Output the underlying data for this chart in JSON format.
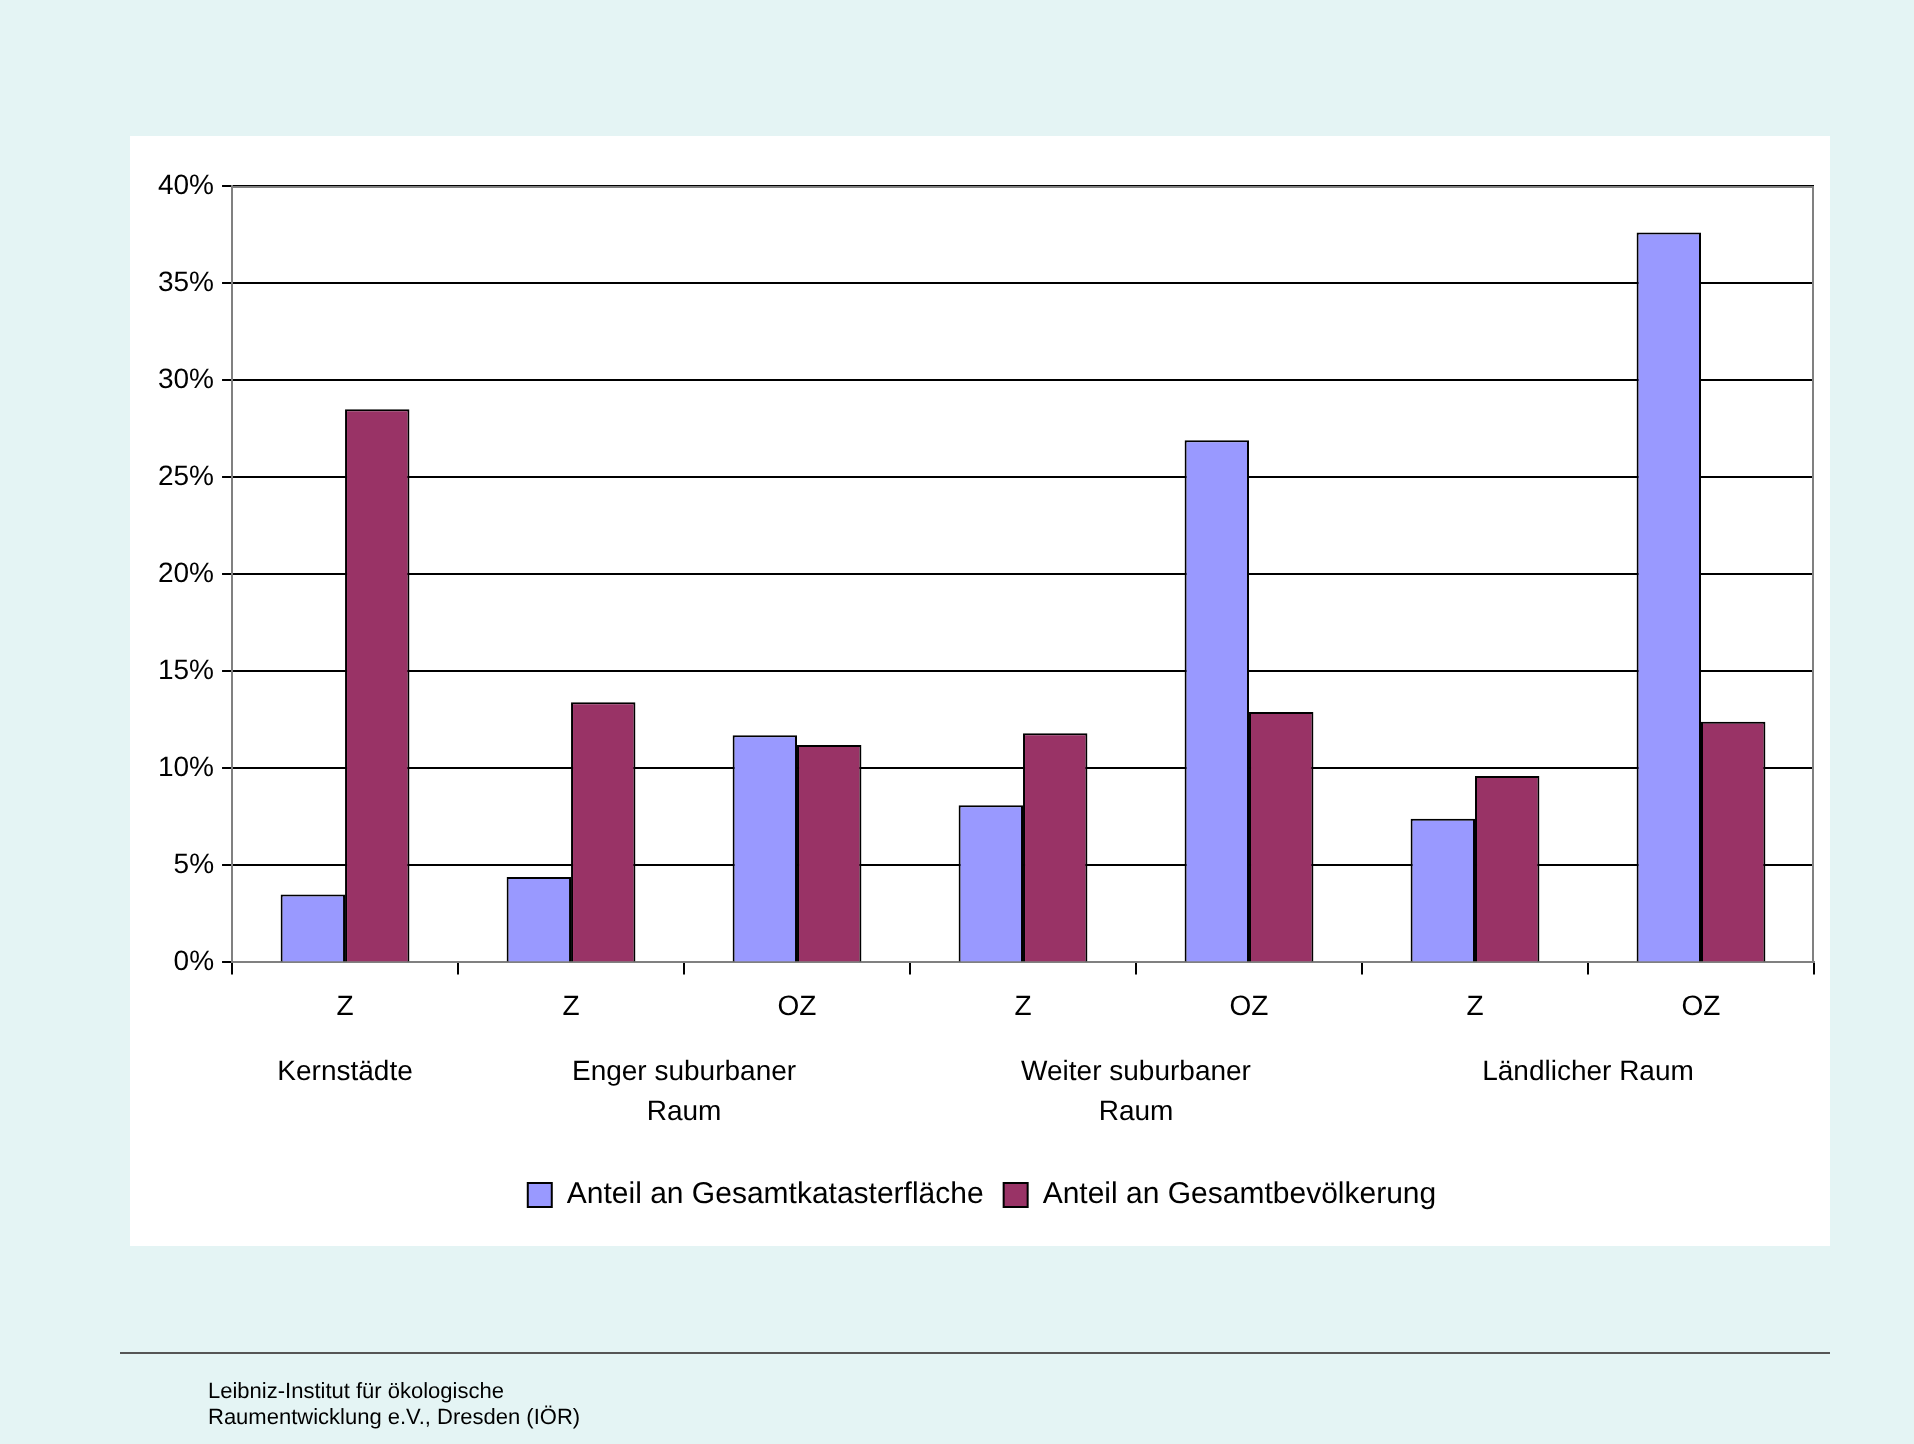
{
  "chart_data": {
    "type": "bar",
    "categories": [
      "Z",
      "Z",
      "OZ",
      "Z",
      "OZ",
      "Z",
      "OZ"
    ],
    "series": [
      {
        "name": "Anteil an Gesamtkatasterfläche",
        "color": "#9999ff",
        "values": [
          3.5,
          4.4,
          11.7,
          8.1,
          26.9,
          7.4,
          37.6
        ]
      },
      {
        "name": "Anteil an Gesamtbevölkerung",
        "color": "#993366",
        "values": [
          28.5,
          13.4,
          11.2,
          11.8,
          12.9,
          9.6,
          12.4
        ]
      }
    ],
    "ylim": [
      0,
      40
    ],
    "yticks": [
      {
        "value": 0,
        "label": "0%"
      },
      {
        "value": 5,
        "label": "5%"
      },
      {
        "value": 10,
        "label": "10%"
      },
      {
        "value": 15,
        "label": "15%"
      },
      {
        "value": 20,
        "label": "20%"
      },
      {
        "value": 25,
        "label": "25%"
      },
      {
        "value": 30,
        "label": "30%"
      },
      {
        "value": 35,
        "label": "35%"
      },
      {
        "value": 40,
        "label": "40%"
      }
    ],
    "grid": "y",
    "legend": "bottom",
    "annotations": [
      "Kernstädte",
      "Enger suburbaner Raum",
      "Weiter suburbaner Raum",
      "Ländlicher Raum",
      "Leibniz-Institut für ökologische Raumentwicklung e.V., Dresden (IÖR)"
    ]
  }
}
